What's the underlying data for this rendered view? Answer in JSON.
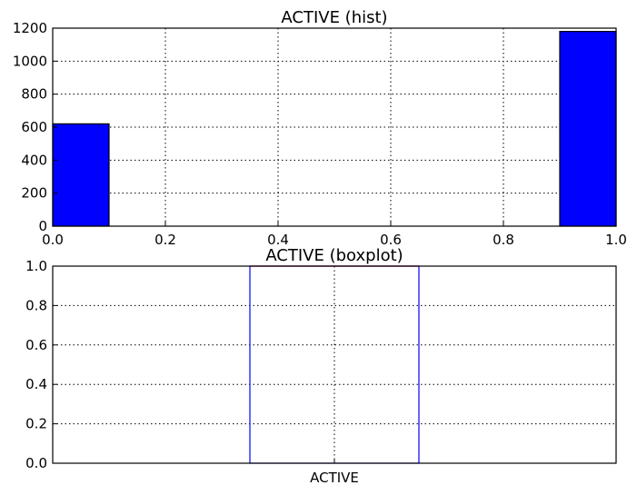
{
  "chart_data": [
    {
      "type": "bar",
      "subtype": "histogram",
      "title": "ACTIVE (hist)",
      "bins": [
        {
          "x0": 0.0,
          "x1": 0.1,
          "count": 620
        },
        {
          "x0": 0.1,
          "x1": 0.2,
          "count": 0
        },
        {
          "x0": 0.2,
          "x1": 0.3,
          "count": 0
        },
        {
          "x0": 0.3,
          "x1": 0.4,
          "count": 0
        },
        {
          "x0": 0.4,
          "x1": 0.5,
          "count": 0
        },
        {
          "x0": 0.5,
          "x1": 0.6,
          "count": 0
        },
        {
          "x0": 0.6,
          "x1": 0.7,
          "count": 0
        },
        {
          "x0": 0.7,
          "x1": 0.8,
          "count": 0
        },
        {
          "x0": 0.8,
          "x1": 0.9,
          "count": 0
        },
        {
          "x0": 0.9,
          "x1": 1.0,
          "count": 1180
        }
      ],
      "xlim": [
        0.0,
        1.0
      ],
      "ylim": [
        0,
        1200
      ],
      "xticks": [
        "0.0",
        "0.2",
        "0.4",
        "0.6",
        "0.8",
        "1.0"
      ],
      "yticks": [
        "0",
        "200",
        "400",
        "600",
        "800",
        "1000",
        "1200"
      ],
      "xlabel": "",
      "ylabel": "",
      "grid": true,
      "bar_color": "#0000ff"
    },
    {
      "type": "boxplot",
      "title": "ACTIVE (boxplot)",
      "categories": [
        "ACTIVE"
      ],
      "boxes": [
        {
          "name": "ACTIVE",
          "min": 0.0,
          "q1": 0.0,
          "median": 1.0,
          "q3": 1.0,
          "max": 1.0
        }
      ],
      "ylim": [
        0.0,
        1.0
      ],
      "yticks": [
        "0.0",
        "0.2",
        "0.4",
        "0.6",
        "0.8",
        "1.0"
      ],
      "xlabel": "",
      "ylabel": "",
      "grid": true,
      "box_color": "#0000ff",
      "median_color": "#ff0000"
    }
  ]
}
